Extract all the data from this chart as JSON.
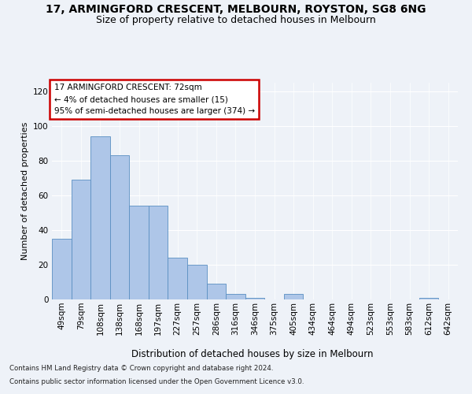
{
  "title1": "17, ARMINGFORD CRESCENT, MELBOURN, ROYSTON, SG8 6NG",
  "title2": "Size of property relative to detached houses in Melbourn",
  "xlabel": "Distribution of detached houses by size in Melbourn",
  "ylabel": "Number of detached properties",
  "categories": [
    "49sqm",
    "79sqm",
    "108sqm",
    "138sqm",
    "168sqm",
    "197sqm",
    "227sqm",
    "257sqm",
    "286sqm",
    "316sqm",
    "346sqm",
    "375sqm",
    "405sqm",
    "434sqm",
    "464sqm",
    "494sqm",
    "523sqm",
    "553sqm",
    "583sqm",
    "612sqm",
    "642sqm"
  ],
  "values": [
    35,
    69,
    94,
    83,
    54,
    54,
    24,
    20,
    9,
    3,
    1,
    0,
    3,
    0,
    0,
    0,
    0,
    0,
    0,
    1,
    0
  ],
  "bar_color": "#aec6e8",
  "bar_edge_color": "#5a8fc2",
  "annotation_box_text": "17 ARMINGFORD CRESCENT: 72sqm\n← 4% of detached houses are smaller (15)\n95% of semi-detached houses are larger (374) →",
  "ylim": [
    0,
    125
  ],
  "yticks": [
    0,
    20,
    40,
    60,
    80,
    100,
    120
  ],
  "footer1": "Contains HM Land Registry data © Crown copyright and database right 2024.",
  "footer2": "Contains public sector information licensed under the Open Government Licence v3.0.",
  "bg_color": "#eef2f8",
  "plot_bg_color": "#eef2f8",
  "title1_fontsize": 10,
  "title2_fontsize": 9,
  "ylabel_fontsize": 8,
  "xlabel_fontsize": 8.5,
  "tick_fontsize": 7.5,
  "footer_fontsize": 6.2
}
